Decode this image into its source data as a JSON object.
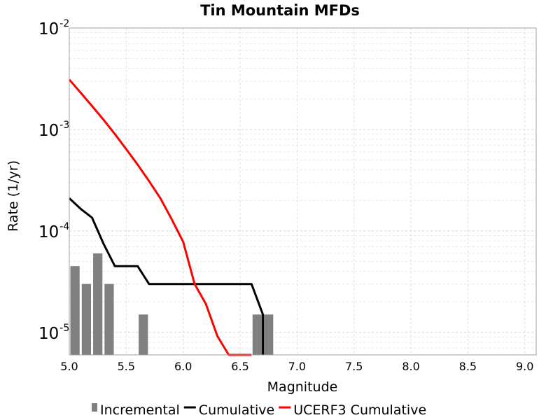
{
  "chart_data": {
    "type": "bar",
    "title": "Tin Mountain MFDs",
    "xlabel": "Magnitude",
    "ylabel": "Rate (1/yr)",
    "xlim": [
      5.0,
      9.1
    ],
    "ylim": [
      6e-06,
      0.01
    ],
    "yscale": "log",
    "grid": true,
    "legend_position": "bottom",
    "x_ticks": [
      "5.0",
      "5.5",
      "6.0",
      "6.5",
      "7.0",
      "7.5",
      "8.0",
      "8.5",
      "9.0"
    ],
    "y_ticks": [
      {
        "base": "10",
        "exp": "-2",
        "value": 0.01
      },
      {
        "base": "10",
        "exp": "-3",
        "value": 0.001
      },
      {
        "base": "10",
        "exp": "-4",
        "value": 0.0001
      },
      {
        "base": "10",
        "exp": "-5",
        "value": 1e-05
      }
    ],
    "series": [
      {
        "name": "Incremental",
        "kind": "bar",
        "color": "#808080",
        "bin_width": 0.1,
        "x": [
          5.05,
          5.15,
          5.25,
          5.35,
          5.65,
          6.65,
          6.75
        ],
        "values": [
          4.5e-05,
          3e-05,
          6e-05,
          3e-05,
          1.5e-05,
          1.5e-05,
          1.5e-05
        ]
      },
      {
        "name": "Cumulative",
        "kind": "line",
        "color": "#000000",
        "x": [
          5.0,
          5.1,
          5.2,
          5.3,
          5.4,
          5.5,
          5.6,
          5.7,
          5.8,
          5.9,
          6.0,
          6.1,
          6.2,
          6.3,
          6.4,
          6.5,
          6.6,
          6.7,
          6.7
        ],
        "values": [
          0.00021,
          0.000165,
          0.000135,
          7.5e-05,
          4.5e-05,
          4.5e-05,
          4.5e-05,
          3e-05,
          3e-05,
          3e-05,
          3e-05,
          3e-05,
          3e-05,
          3e-05,
          3e-05,
          3e-05,
          3e-05,
          1.5e-05,
          6e-06
        ]
      },
      {
        "name": "UCERF3 Cumulative",
        "kind": "line",
        "color": "#ff0000",
        "x": [
          5.0,
          5.1,
          5.2,
          5.3,
          5.4,
          5.5,
          5.6,
          5.7,
          5.8,
          5.9,
          6.0,
          6.1,
          6.2,
          6.3,
          6.4,
          6.5,
          6.6
        ],
        "values": [
          0.0031,
          0.0023,
          0.0017,
          0.00125,
          0.0009,
          0.00064,
          0.00045,
          0.00031,
          0.00021,
          0.00013,
          7.8e-05,
          3e-05,
          1.9e-05,
          9.2e-06,
          6e-06,
          6e-06,
          6e-06
        ]
      }
    ]
  }
}
